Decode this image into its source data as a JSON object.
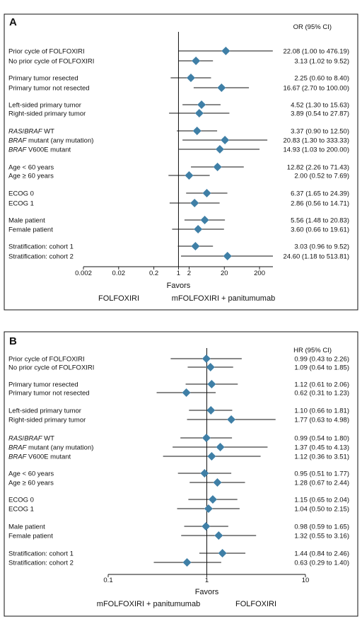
{
  "chart_data": [
    {
      "type": "forest",
      "panel_label": "A",
      "estimate_header": "OR (95% CI)",
      "xlabel": "Favors",
      "scale": "log",
      "ticks": [
        {
          "v": 0.002,
          "label": "0.002"
        },
        {
          "v": 0.02,
          "label": "0.02"
        },
        {
          "v": 0.2,
          "label": "0.2"
        },
        {
          "v": 1,
          "label": "1"
        },
        {
          "v": 2,
          "label": "2"
        },
        {
          "v": 20,
          "label": "20"
        },
        {
          "v": 200,
          "label": "200"
        }
      ],
      "xlim": [
        0.002,
        480
      ],
      "ref_value": 1,
      "favors_left": "FOLFOXIRI",
      "favors_right": "mFOLFOXIRI + panitumumab",
      "rows": [
        {
          "label": [
            {
              "t": "Prior cycle of FOLFOXIRI"
            }
          ],
          "est": 22.08,
          "lo": 1.0,
          "hi": 476.19,
          "ci_text": "22.08 (1.00 to 476.19)"
        },
        {
          "label": [
            {
              "t": "No prior cycle of FOLFOXIRI"
            }
          ],
          "est": 3.13,
          "lo": 1.02,
          "hi": 9.52,
          "ci_text": "3.13 (1.02 to 9.52)"
        },
        {
          "label": [
            {
              "t": "Primary tumor resected"
            }
          ],
          "est": 2.25,
          "lo": 0.6,
          "hi": 8.4,
          "ci_text": "2.25 (0.60 to 8.40)"
        },
        {
          "label": [
            {
              "t": "Primary tumor not resected"
            }
          ],
          "est": 16.67,
          "lo": 2.7,
          "hi": 100.0,
          "ci_text": "16.67 (2.70 to 100.00)"
        },
        {
          "label": [
            {
              "t": "Left-sided primary tumor"
            }
          ],
          "est": 4.52,
          "lo": 1.3,
          "hi": 15.63,
          "ci_text": "4.52 (1.30 to 15.63)"
        },
        {
          "label": [
            {
              "t": "Right-sided primary tumor"
            }
          ],
          "est": 3.89,
          "lo": 0.54,
          "hi": 27.87,
          "ci_text": "3.89 (0.54 to 27.87)"
        },
        {
          "label": [
            {
              "t": "RAS",
              "i": true
            },
            {
              "t": "/"
            },
            {
              "t": "BRAF",
              "i": true
            },
            {
              "t": " WT"
            }
          ],
          "est": 3.37,
          "lo": 0.9,
          "hi": 12.5,
          "ci_text": "3.37 (0.90 to 12.50)"
        },
        {
          "label": [
            {
              "t": "BRAF",
              "i": true
            },
            {
              "t": " mutant (any mutation)"
            }
          ],
          "est": 20.83,
          "lo": 1.3,
          "hi": 333.33,
          "ci_text": "20.83 (1.30 to 333.33)"
        },
        {
          "label": [
            {
              "t": "BRAF",
              "i": true
            },
            {
              "t": " V600E mutant"
            }
          ],
          "est": 14.93,
          "lo": 1.03,
          "hi": 200.0,
          "ci_text": "14.93 (1.03 to 200.00)"
        },
        {
          "label": [
            {
              "t": "Age < 60 years"
            }
          ],
          "est": 12.82,
          "lo": 2.26,
          "hi": 71.43,
          "ci_text": "12.82 (2.26 to 71.43)"
        },
        {
          "label": [
            {
              "t": "Age ≥ 60 years"
            }
          ],
          "est": 2.0,
          "lo": 0.52,
          "hi": 7.69,
          "ci_text": "2.00 (0.52 to 7.69)"
        },
        {
          "label": [
            {
              "t": "ECOG 0"
            }
          ],
          "est": 6.37,
          "lo": 1.65,
          "hi": 24.39,
          "ci_text": "6.37 (1.65 to 24.39)"
        },
        {
          "label": [
            {
              "t": "ECOG 1"
            }
          ],
          "est": 2.86,
          "lo": 0.56,
          "hi": 14.71,
          "ci_text": "2.86 (0.56 to 14.71)"
        },
        {
          "label": [
            {
              "t": "Male patient"
            }
          ],
          "est": 5.56,
          "lo": 1.48,
          "hi": 20.83,
          "ci_text": "5.56 (1.48 to 20.83)"
        },
        {
          "label": [
            {
              "t": "Female patient"
            }
          ],
          "est": 3.6,
          "lo": 0.66,
          "hi": 19.61,
          "ci_text": "3.60 (0.66 to 19.61)"
        },
        {
          "label": [
            {
              "t": "Stratification: cohort 1"
            }
          ],
          "est": 3.03,
          "lo": 0.96,
          "hi": 9.52,
          "ci_text": "3.03 (0.96 to 9.52)"
        },
        {
          "label": [
            {
              "t": "Stratification: cohort 2"
            }
          ],
          "est": 24.6,
          "lo": 1.18,
          "hi": 513.81,
          "ci_text": "24.60 (1.18 to 513.81)"
        }
      ]
    },
    {
      "type": "forest",
      "panel_label": "B",
      "estimate_header": "HR (95% CI)",
      "xlabel": "Favors",
      "scale": "log",
      "ticks": [
        {
          "v": 0.1,
          "label": "0.1"
        },
        {
          "v": 1,
          "label": "1"
        },
        {
          "v": 10,
          "label": "10"
        }
      ],
      "xlim": [
        0.1,
        10
      ],
      "ref_value": 1,
      "favors_left": "mFOLFOXIRI + panitumumab",
      "favors_right": "FOLFOXIRI",
      "rows": [
        {
          "label": [
            {
              "t": "Prior cycle of FOLFOXIRI"
            }
          ],
          "est": 0.99,
          "lo": 0.43,
          "hi": 2.26,
          "ci_text": "0.99 (0.43 to 2.26)"
        },
        {
          "label": [
            {
              "t": "No prior cycle of FOLFOXIRI"
            }
          ],
          "est": 1.09,
          "lo": 0.64,
          "hi": 1.85,
          "ci_text": "1.09 (0.64 to 1.85)"
        },
        {
          "label": [
            {
              "t": "Primary tumor resected"
            }
          ],
          "est": 1.12,
          "lo": 0.61,
          "hi": 2.06,
          "ci_text": "1.12 (0.61 to 2.06)"
        },
        {
          "label": [
            {
              "t": "Primary tumor not resected"
            }
          ],
          "est": 0.62,
          "lo": 0.31,
          "hi": 1.23,
          "ci_text": "0.62 (0.31 to 1.23)"
        },
        {
          "label": [
            {
              "t": "Left-sided primary tumor"
            }
          ],
          "est": 1.1,
          "lo": 0.66,
          "hi": 1.81,
          "ci_text": "1.10 (0.66 to 1.81)"
        },
        {
          "label": [
            {
              "t": "Right-sided primary tumor"
            }
          ],
          "est": 1.77,
          "lo": 0.63,
          "hi": 4.98,
          "ci_text": "1.77 (0.63 to 4.98)"
        },
        {
          "label": [
            {
              "t": "RAS",
              "i": true
            },
            {
              "t": "/"
            },
            {
              "t": "BRAF",
              "i": true
            },
            {
              "t": " WT"
            }
          ],
          "est": 0.99,
          "lo": 0.54,
          "hi": 1.8,
          "ci_text": "0.99 (0.54 to 1.80)"
        },
        {
          "label": [
            {
              "t": "BRAF",
              "i": true
            },
            {
              "t": " mutant (any mutation)"
            }
          ],
          "est": 1.37,
          "lo": 0.45,
          "hi": 4.13,
          "ci_text": "1.37 (0.45 to 4.13)"
        },
        {
          "label": [
            {
              "t": "BRAF",
              "i": true
            },
            {
              "t": " V600E mutant"
            }
          ],
          "est": 1.12,
          "lo": 0.36,
          "hi": 3.51,
          "ci_text": "1.12 (0.36 to 3.51)"
        },
        {
          "label": [
            {
              "t": "Age < 60 years"
            }
          ],
          "est": 0.95,
          "lo": 0.51,
          "hi": 1.77,
          "ci_text": "0.95 (0.51 to 1.77)"
        },
        {
          "label": [
            {
              "t": "Age ≥ 60 years"
            }
          ],
          "est": 1.28,
          "lo": 0.67,
          "hi": 2.44,
          "ci_text": "1.28 (0.67 to 2.44)"
        },
        {
          "label": [
            {
              "t": "ECOG 0"
            }
          ],
          "est": 1.15,
          "lo": 0.65,
          "hi": 2.04,
          "ci_text": "1.15 (0.65 to 2.04)"
        },
        {
          "label": [
            {
              "t": "ECOG 1"
            }
          ],
          "est": 1.04,
          "lo": 0.5,
          "hi": 2.15,
          "ci_text": "1.04 (0.50 to 2.15)"
        },
        {
          "label": [
            {
              "t": "Male patient"
            }
          ],
          "est": 0.98,
          "lo": 0.59,
          "hi": 1.65,
          "ci_text": "0.98 (0.59 to 1.65)"
        },
        {
          "label": [
            {
              "t": "Female patient"
            }
          ],
          "est": 1.32,
          "lo": 0.55,
          "hi": 3.16,
          "ci_text": "1.32 (0.55 to 3.16)"
        },
        {
          "label": [
            {
              "t": "Stratification: cohort 1"
            }
          ],
          "est": 1.44,
          "lo": 0.84,
          "hi": 2.46,
          "ci_text": "1.44 (0.84 to 2.46)"
        },
        {
          "label": [
            {
              "t": "Stratification: cohort 2"
            }
          ],
          "est": 0.63,
          "lo": 0.29,
          "hi": 1.4,
          "ci_text": "0.63 (0.29 to 1.40)"
        }
      ]
    }
  ],
  "colors": {
    "marker": "#3f7fa6",
    "line": "#111111",
    "frame": "#111111",
    "gridline": "#bbbbbb"
  }
}
